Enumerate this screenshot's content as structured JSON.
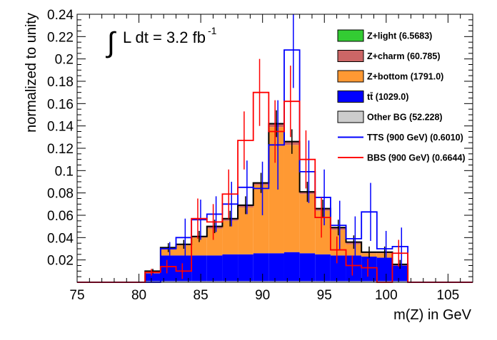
{
  "chart_data": {
    "type": "bar",
    "title": "",
    "xlabel": "m(Z) in GeV",
    "ylabel": "normalized to unity",
    "annotation": {
      "integral_symbol": "∫",
      "text": "L dt = 3.2 fb",
      "superscript": "-1"
    },
    "xlim": [
      75,
      107
    ],
    "ylim": [
      0,
      0.24
    ],
    "x_ticks": [
      {
        "value": 75,
        "label": "75"
      },
      {
        "value": 80,
        "label": "80"
      },
      {
        "value": 85,
        "label": "85"
      },
      {
        "value": 90,
        "label": "90"
      },
      {
        "value": 95,
        "label": "95"
      },
      {
        "value": 100,
        "label": "100"
      },
      {
        "value": 105,
        "label": "105"
      }
    ],
    "y_ticks": [
      {
        "value": 0.02,
        "label": "0.02"
      },
      {
        "value": 0.04,
        "label": "0.04"
      },
      {
        "value": 0.06,
        "label": "0.06"
      },
      {
        "value": 0.08,
        "label": "0.08"
      },
      {
        "value": 0.1,
        "label": "0.1"
      },
      {
        "value": 0.12,
        "label": "0.12"
      },
      {
        "value": 0.14,
        "label": "0.14"
      },
      {
        "value": 0.16,
        "label": "0.16"
      },
      {
        "value": 0.18,
        "label": "0.18"
      },
      {
        "value": 0.2,
        "label": "0.2"
      },
      {
        "value": 0.22,
        "label": "0.22"
      },
      {
        "value": 0.24,
        "label": "0.24"
      }
    ],
    "bin_edges": [
      80.5,
      81.75,
      83,
      84.25,
      85.5,
      86.75,
      88,
      89.25,
      90.5,
      91.75,
      93,
      94.25,
      95.5,
      96.75,
      98,
      99.25,
      100.5,
      101.75
    ],
    "stack": [
      {
        "name": "Other BG",
        "legend": "Other BG (52.228)",
        "color": "#cccccc",
        "values": [
          0.001,
          0.001,
          0.001,
          0.001,
          0.001,
          0.001,
          0.001,
          0.001,
          0.001,
          0.001,
          0.001,
          0.001,
          0.001,
          0.001,
          0.001,
          0.001,
          0.001
        ]
      },
      {
        "name": "ttbar",
        "legend": "(1029.0)",
        "legend_symbol": "tt̄",
        "color": "#0000ff",
        "values": [
          0.007,
          0.023,
          0.023,
          0.023,
          0.023,
          0.024,
          0.024,
          0.025,
          0.025,
          0.026,
          0.025,
          0.024,
          0.023,
          0.023,
          0.022,
          0.021,
          0.014
        ]
      },
      {
        "name": "Z+bottom",
        "legend": "Z+bottom (1791.0)",
        "color": "#ff9933",
        "values": [
          0.002,
          0.006,
          0.009,
          0.016,
          0.024,
          0.03,
          0.042,
          0.061,
          0.113,
          0.096,
          0.053,
          0.039,
          0.023,
          0.01,
          0.003,
          0.004,
          0.001
        ]
      },
      {
        "name": "Z+charm",
        "legend": "Z+charm (60.785)",
        "color": "#cc6666",
        "values": [
          0.0,
          0.001,
          0.001,
          0.001,
          0.002,
          0.002,
          0.002,
          0.002,
          0.003,
          0.003,
          0.002,
          0.002,
          0.002,
          0.002,
          0.001,
          0.001,
          0.0
        ]
      },
      {
        "name": "Z+light",
        "legend": "Z+light (6.5683)",
        "color": "#33cc33",
        "values": [
          0.0,
          0.0,
          0.0,
          0.0,
          0.0,
          0.0,
          0.0,
          0.0,
          0.0,
          0.0,
          0.0,
          0.0,
          0.0,
          0.0,
          0.0,
          0.0,
          0.0
        ]
      }
    ],
    "stack_totals": [
      0.01,
      0.031,
      0.034,
      0.041,
      0.05,
      0.057,
      0.069,
      0.089,
      0.142,
      0.126,
      0.081,
      0.066,
      0.049,
      0.036,
      0.027,
      0.027,
      0.016
    ],
    "stack_errors": [
      0.002,
      0.004,
      0.004,
      0.005,
      0.006,
      0.007,
      0.008,
      0.009,
      0.012,
      0.011,
      0.009,
      0.008,
      0.007,
      0.006,
      0.005,
      0.005,
      0.004
    ],
    "lines": [
      {
        "name": "TTS (900 GeV)",
        "legend": "TTS (900 GeV) (0.6010)",
        "color": "#0000ff",
        "values": [
          0.0,
          0.03,
          0.04,
          0.056,
          0.061,
          0.07,
          0.085,
          0.084,
          0.123,
          0.208,
          0.099,
          0.076,
          0.051,
          0.039,
          0.063,
          0.03,
          0.032
        ],
        "errors": [
          0.0,
          0.006,
          0.017,
          0.018,
          0.016,
          0.02,
          0.024,
          0.024,
          0.04,
          0.034,
          0.028,
          0.025,
          0.022,
          0.02,
          0.026,
          0.016,
          0.017
        ]
      },
      {
        "name": "BBS (900 GeV)",
        "legend": "BBS (900 GeV) (0.6644)",
        "color": "#ff0000",
        "values": [
          0.009,
          0.014,
          0.01,
          0.057,
          0.054,
          0.079,
          0.127,
          0.17,
          0.135,
          0.162,
          0.11,
          0.058,
          0.029,
          0.015,
          0.013,
          0.0,
          0.026
        ],
        "errors": [
          0.003,
          0.006,
          0.007,
          0.018,
          0.016,
          0.022,
          0.026,
          0.03,
          0.028,
          0.032,
          0.026,
          0.018,
          0.012,
          0.009,
          0.008,
          0.0,
          0.012
        ]
      }
    ],
    "legend_entries": [
      {
        "key": "Z+light",
        "text": "Z+light (6.5683)",
        "kind": "box",
        "color": "#33cc33"
      },
      {
        "key": "Z+charm",
        "text": "Z+charm (60.785)",
        "kind": "box",
        "color": "#cc6666"
      },
      {
        "key": "Z+bottom",
        "text": "Z+bottom (1791.0)",
        "kind": "box",
        "color": "#ff9933"
      },
      {
        "key": "ttbar",
        "text": "tt̄ (1029.0)",
        "kind": "box",
        "color": "#0000ff"
      },
      {
        "key": "Other BG",
        "text": "Other BG (52.228)",
        "kind": "box",
        "color": "#cccccc"
      },
      {
        "key": "TTS",
        "text": "TTS (900 GeV) (0.6010)",
        "kind": "line",
        "color": "#0000ff"
      },
      {
        "key": "BBS",
        "text": "BBS (900 GeV) (0.6644)",
        "kind": "line",
        "color": "#ff0000"
      }
    ],
    "legend_position": "top-right",
    "grid": false
  }
}
